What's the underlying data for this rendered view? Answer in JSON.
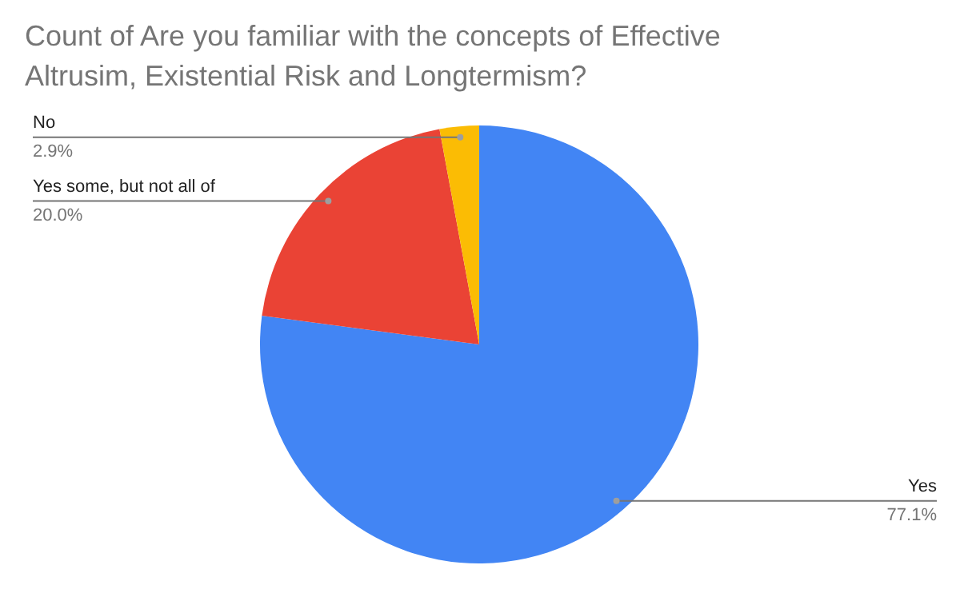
{
  "chart_data": {
    "type": "pie",
    "title": "Count of Are you familiar with the concepts of Effective Altrusim, Existential Risk and Longtermism?",
    "categories": [
      "Yes",
      "Yes some, but not all of",
      "No"
    ],
    "values": [
      77.1,
      20.0,
      2.9
    ],
    "colors": [
      "#4285f4",
      "#ea4335",
      "#fbbc04"
    ],
    "value_labels": [
      "77.1%",
      "20.0%",
      "2.9%"
    ]
  }
}
